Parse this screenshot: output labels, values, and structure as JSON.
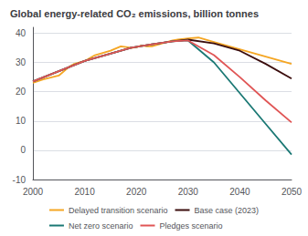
{
  "chart_data": {
    "type": "line",
    "title": "Global energy-related CO₂ emissions, billion tonnes",
    "xlim": [
      2000,
      2050
    ],
    "xticks": [
      2000,
      2010,
      2020,
      2030,
      2040,
      2050
    ],
    "ylim": [
      -10,
      42
    ],
    "yticks": [
      -10,
      0,
      10,
      20,
      30,
      40
    ],
    "grid": true,
    "legend": "bottom",
    "series": [
      {
        "name": "Delayed transition scenario",
        "color": "#f5a623",
        "x": [
          2000,
          2002,
          2005,
          2007,
          2008,
          2010,
          2012,
          2015,
          2017,
          2019,
          2020,
          2021,
          2022,
          2023,
          2025,
          2027,
          2028,
          2030,
          2032,
          2035,
          2040,
          2045,
          2050
        ],
        "values": [
          23.0,
          24.2,
          25.5,
          28.5,
          29.5,
          30.5,
          32.5,
          34.0,
          35.5,
          35.0,
          35.2,
          35.8,
          35.5,
          35.5,
          36.5,
          37.5,
          37.8,
          38.2,
          38.5,
          37.0,
          34.5,
          32.0,
          29.5
        ]
      },
      {
        "name": "Base case (2023)",
        "color": "#3b0d0d",
        "x": [
          2000,
          2005,
          2010,
          2015,
          2019,
          2023,
          2027,
          2030,
          2035,
          2040,
          2045,
          2050
        ],
        "values": [
          23.5,
          27.0,
          30.5,
          33.0,
          35.0,
          36.2,
          37.2,
          37.8,
          36.5,
          34.0,
          29.5,
          24.5
        ]
      },
      {
        "name": "Net zero scenario",
        "color": "#1a7874",
        "x": [
          2000,
          2005,
          2010,
          2015,
          2019,
          2023,
          2027,
          2030,
          2035,
          2040,
          2045,
          2050
        ],
        "values": [
          23.5,
          27.0,
          30.5,
          33.0,
          35.0,
          36.2,
          37.2,
          37.5,
          30.0,
          19.5,
          9.0,
          -1.5
        ]
      },
      {
        "name": "Pledges scenario",
        "color": "#e05555",
        "x": [
          2000,
          2005,
          2010,
          2015,
          2019,
          2023,
          2027,
          2030,
          2035,
          2040,
          2045,
          2050
        ],
        "values": [
          23.5,
          27.0,
          30.5,
          33.0,
          35.0,
          36.2,
          37.2,
          37.5,
          32.5,
          25.0,
          17.0,
          9.5
        ]
      }
    ]
  }
}
